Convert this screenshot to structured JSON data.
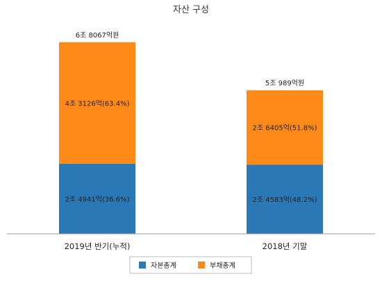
{
  "chart_data": {
    "type": "bar",
    "stacked": true,
    "title": "자산 구성",
    "categories": [
      "2019년 반기(누적)",
      "2018년 기말"
    ],
    "series": [
      {
        "name": "자본총계",
        "color": "#2a78b6",
        "values": [
          24941,
          24583
        ],
        "labels": [
          "2조 4941억(36.6%)",
          "2조 4583억(48.2%)"
        ]
      },
      {
        "name": "부채총계",
        "color": "#ff8a1a",
        "values": [
          43126,
          26405
        ],
        "labels": [
          "4조 3126억(63.4%)",
          "2조 6405억(51.8%)"
        ]
      }
    ],
    "totals": [
      68067,
      50989
    ],
    "total_labels": [
      "6조 8067억원",
      "5조 989억원"
    ],
    "unit": "억원",
    "ylim": [
      0,
      70000
    ],
    "grid": false,
    "legend_position": "bottom"
  }
}
